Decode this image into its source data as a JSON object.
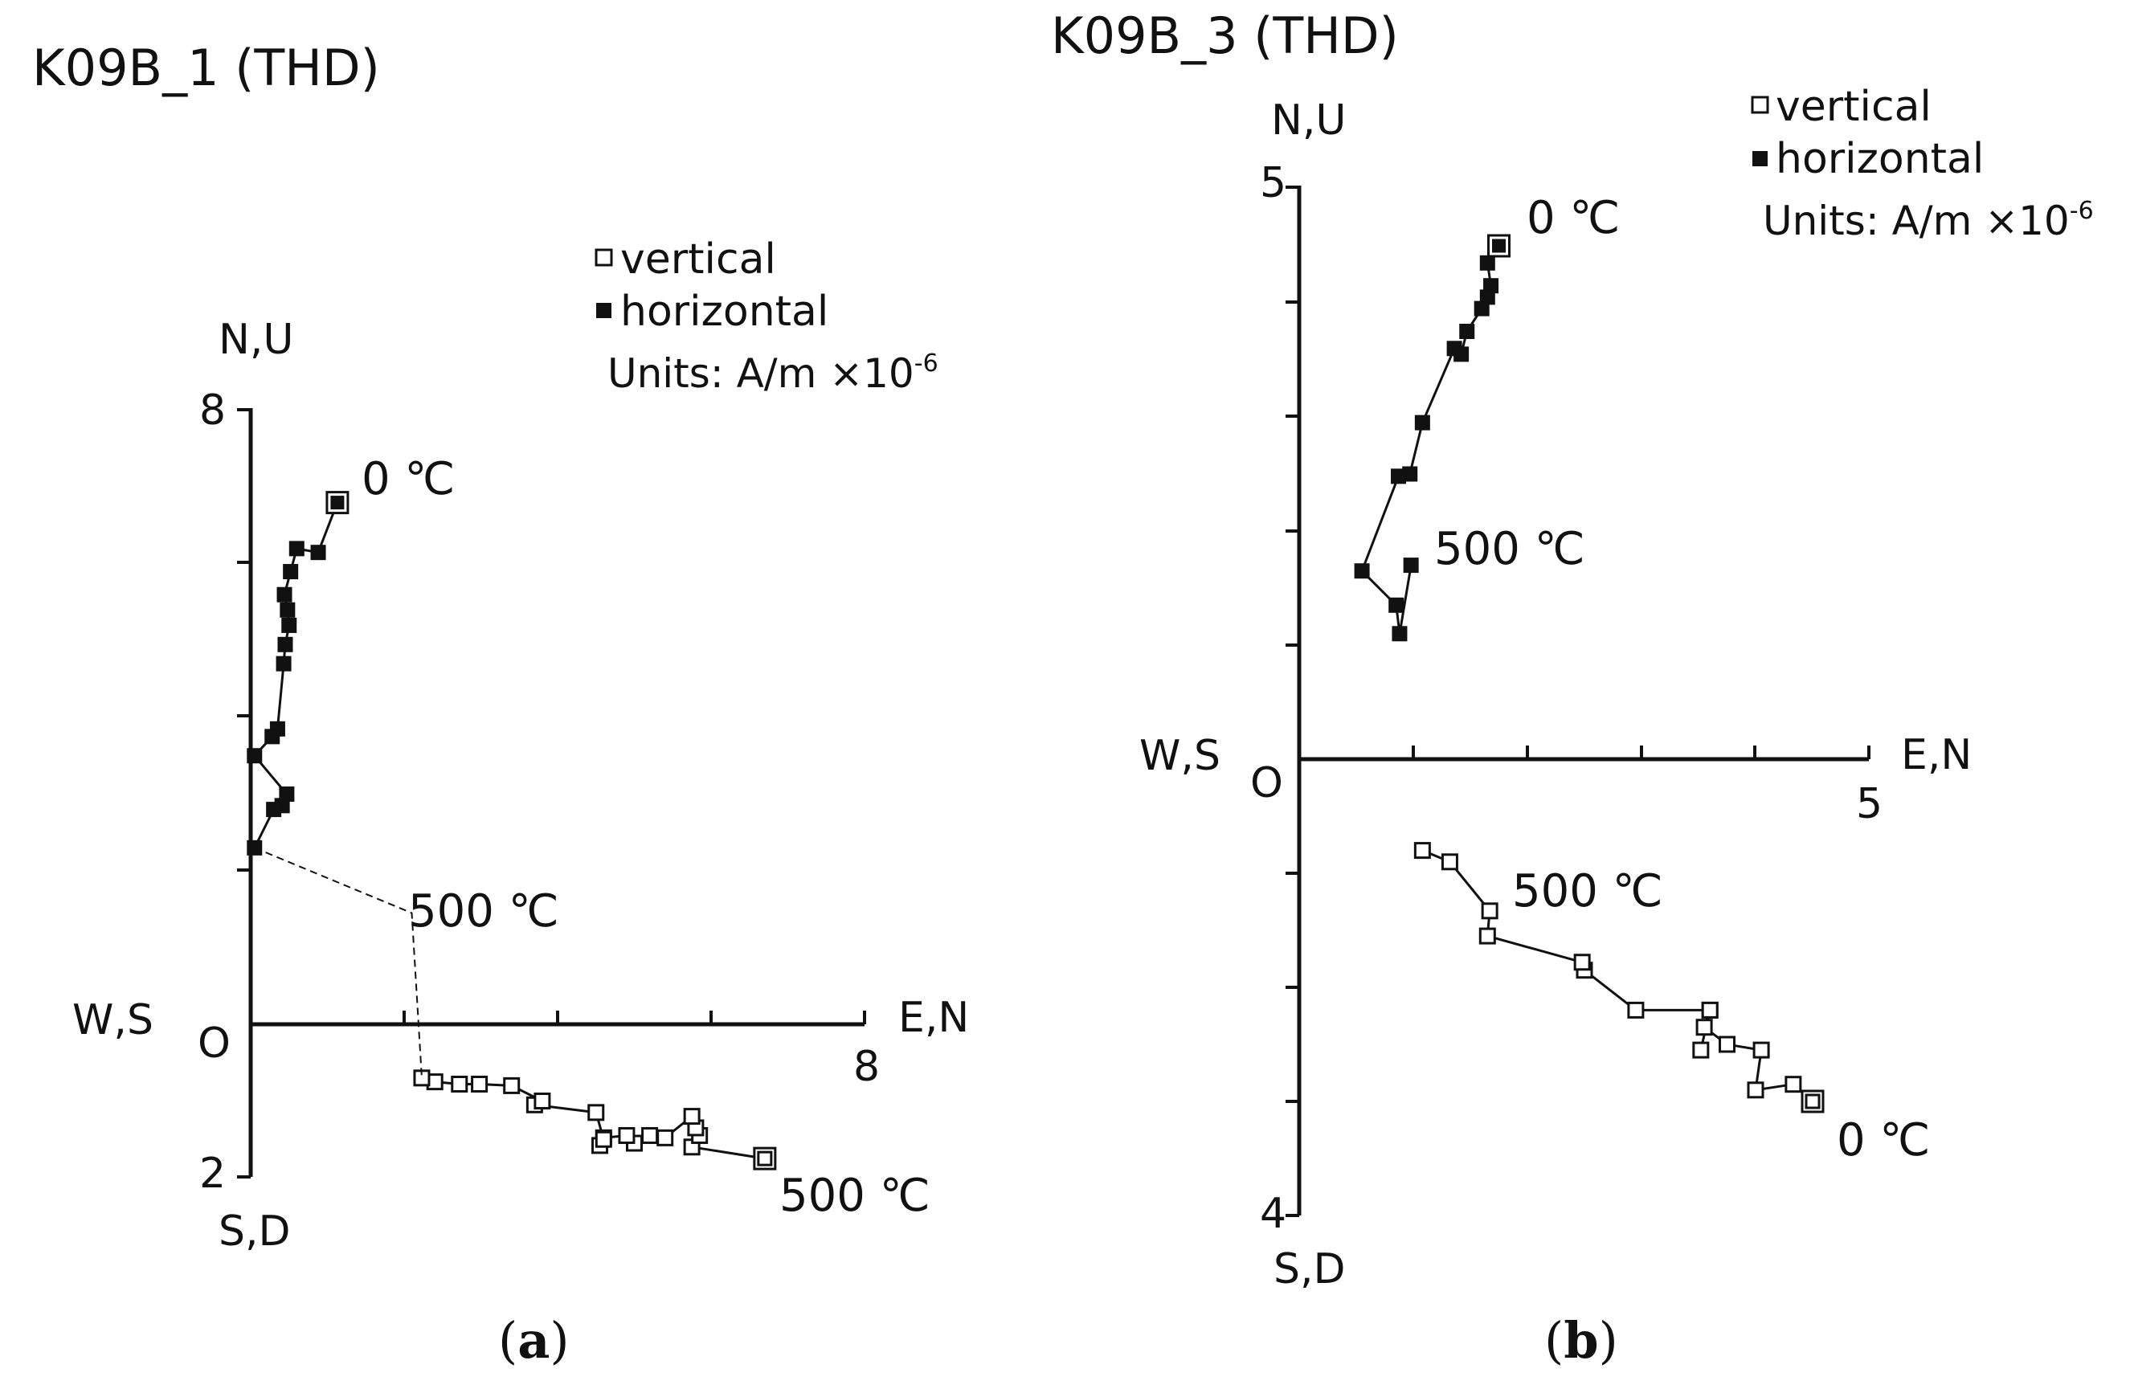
{
  "figure": {
    "panels": [
      {
        "label": "a",
        "title": "K09B_1 (THD)",
        "axis_top_label": "N,U",
        "axis_top_value": "8",
        "axis_bottom_label": "S,D",
        "axis_bottom_value": "2",
        "axis_left_label": "W,S",
        "axis_right_label": "E,N",
        "axis_right_value": "8",
        "origin_label": "O",
        "legend": {
          "vertical": "vertical",
          "horizontal": "horizontal",
          "units_prefix": "Units: A/m ×10",
          "units_exp": "-6"
        },
        "annotations": [
          "0 ℃",
          "500 ℃",
          "500 ℃"
        ]
      },
      {
        "label": "b",
        "title": "K09B_3 (THD)",
        "axis_top_label": "N,U",
        "axis_top_value": "5",
        "axis_bottom_label": "S,D",
        "axis_bottom_value": "4",
        "axis_left_label": "W,S",
        "axis_right_label": "E,N",
        "axis_right_value": "5",
        "origin_label": "O",
        "legend": {
          "vertical": "vertical",
          "horizontal": "horizontal",
          "units_prefix": "Units: A/m ×10",
          "units_exp": "-6"
        },
        "annotations": [
          "0 ℃",
          "500 ℃",
          "500 ℃",
          "0 ℃"
        ]
      }
    ]
  },
  "chart_data": [
    {
      "type": "scatter",
      "subtype": "zijderveld",
      "title": "K09B_1 (THD)",
      "xlabel": "E,N",
      "ylabel": "N,U",
      "xlim": [
        0,
        8
      ],
      "ylim": [
        -2,
        8
      ],
      "series": [
        {
          "name": "horizontal",
          "marker": "filled-square",
          "x": [
            1.13,
            0.88,
            0.6,
            0.52,
            0.44,
            0.48,
            0.5,
            0.45,
            0.43,
            0.35,
            0.28,
            0.05,
            0.47,
            0.41,
            0.3,
            0.05
          ],
          "y": [
            6.8,
            6.15,
            6.2,
            5.9,
            5.6,
            5.4,
            5.2,
            4.95,
            4.7,
            3.85,
            3.75,
            3.5,
            3.0,
            2.85,
            2.8,
            2.3
          ]
        },
        {
          "name": "vertical",
          "marker": "open-square",
          "x": [
            6.7,
            5.75,
            5.85,
            5.8,
            5.75,
            5.4,
            5.2,
            5.0,
            4.9,
            4.6,
            4.55,
            4.6,
            4.5,
            3.7,
            3.8,
            3.4,
            2.98,
            2.72,
            2.4,
            2.23
          ],
          "y": [
            -1.75,
            -1.6,
            -1.45,
            -1.35,
            -1.2,
            -1.48,
            -1.45,
            -1.55,
            -1.45,
            -1.48,
            -1.58,
            -1.5,
            -1.15,
            -1.05,
            -1.0,
            -0.8,
            -0.78,
            -0.78,
            -0.75,
            -0.7
          ]
        },
        {
          "name": "connector",
          "style": "dashed",
          "x": [
            0.05,
            2.1,
            2.23
          ],
          "y": [
            2.3,
            1.45,
            -0.7
          ]
        }
      ],
      "annotations": [
        "0 ℃",
        "500 ℃",
        "500 ℃"
      ]
    },
    {
      "type": "scatter",
      "subtype": "zijderveld",
      "title": "K09B_3 (THD)",
      "xlabel": "E,N",
      "ylabel": "N,U",
      "xlim": [
        0,
        5
      ],
      "ylim": [
        -4,
        5
      ],
      "series": [
        {
          "name": "horizontal",
          "marker": "filled-square",
          "x": [
            1.75,
            1.65,
            1.68,
            1.65,
            1.6,
            1.47,
            1.42,
            1.36,
            1.08,
            0.97,
            0.87,
            0.55,
            0.85,
            0.88,
            0.98
          ],
          "y": [
            4.5,
            4.35,
            4.15,
            4.05,
            3.95,
            3.75,
            3.55,
            3.6,
            2.95,
            2.5,
            2.48,
            1.65,
            1.35,
            1.1,
            1.7
          ]
        },
        {
          "name": "vertical",
          "marker": "open-square",
          "x": [
            4.5,
            4.33,
            4.0,
            4.05,
            3.75,
            3.55,
            3.6,
            3.52,
            3.6,
            2.95,
            2.5,
            2.48,
            1.65,
            1.67,
            1.32,
            1.08
          ],
          "y": [
            -3.0,
            -2.85,
            -2.9,
            -2.55,
            -2.5,
            -2.35,
            -2.2,
            -2.55,
            -2.2,
            -2.2,
            -1.85,
            -1.78,
            -1.55,
            -1.33,
            -0.9,
            -0.8
          ]
        }
      ],
      "annotations": [
        "0 ℃",
        "500 ℃",
        "500 ℃",
        "0 ℃"
      ]
    }
  ]
}
